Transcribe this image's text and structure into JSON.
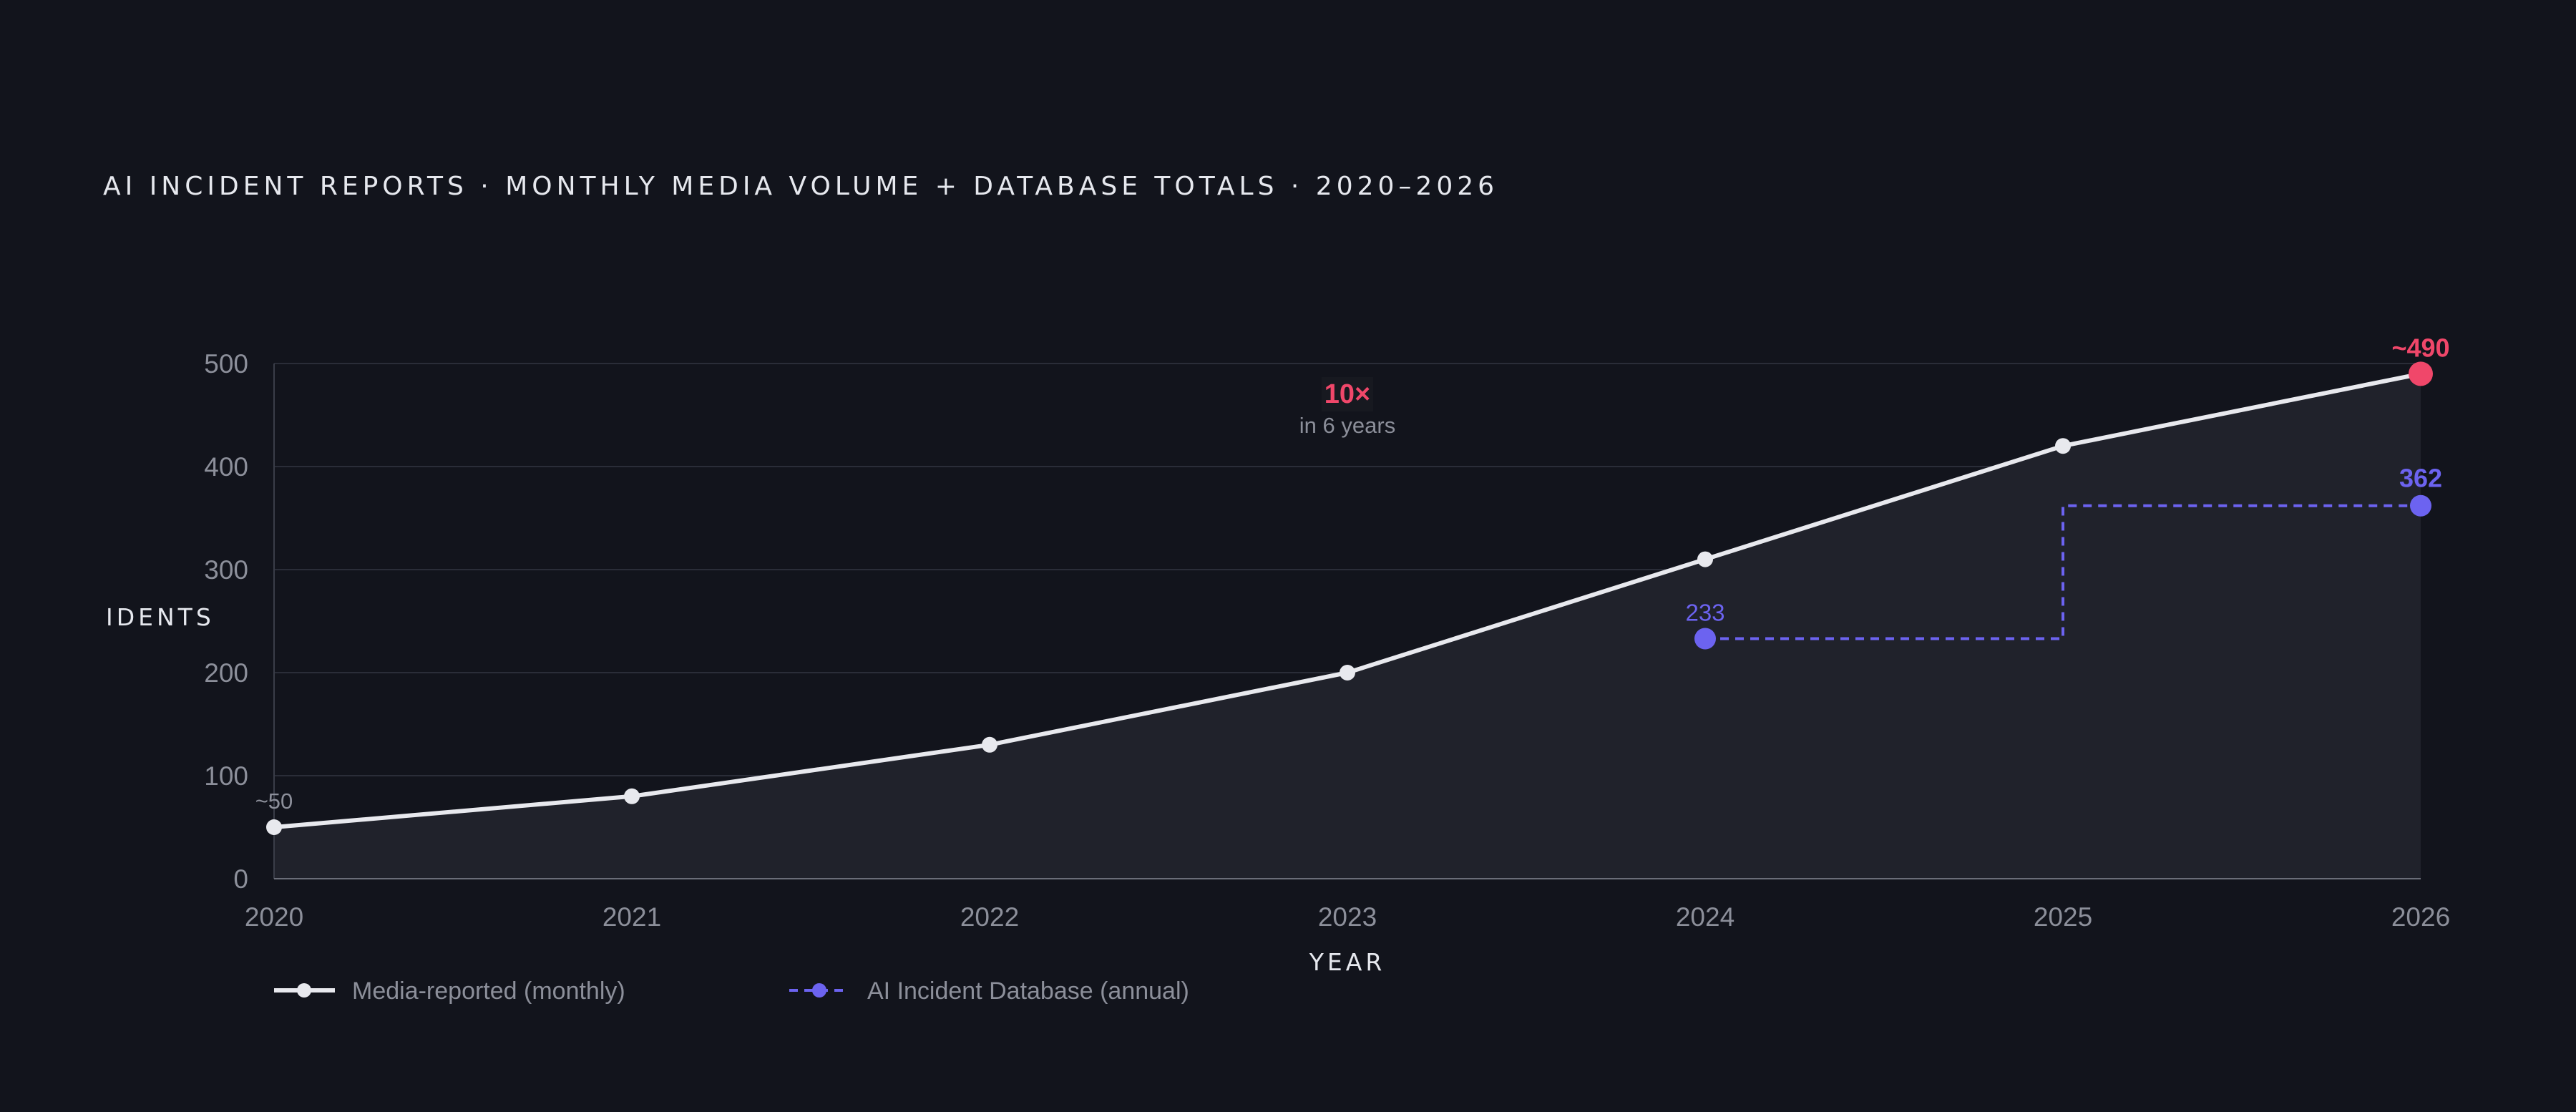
{
  "title": "AI INCIDENT REPORTS · MONTHLY MEDIA VOLUME + DATABASE TOTALS · 2020–2026",
  "colors": {
    "background": "#12141c",
    "media_line": "#e8e9ee",
    "database_line": "#6c63f0",
    "highlight": "#f0476a",
    "grid": "#2a2d38",
    "area_fill": "#20222b"
  },
  "chart_data": {
    "type": "line",
    "xlabel": "YEAR",
    "ylabel": "IDENTS",
    "xlim": [
      2020,
      2026
    ],
    "ylim": [
      0,
      500
    ],
    "x_ticks": [
      "2020",
      "2021",
      "2022",
      "2023",
      "2024",
      "2025",
      "2026"
    ],
    "y_ticks": [
      "0",
      "100",
      "200",
      "300",
      "400",
      "500"
    ],
    "grid": true,
    "legend_position": "bottom-left",
    "series": [
      {
        "name": "Media-reported (monthly)",
        "style": "solid-area",
        "x": [
          2020,
          2021,
          2022,
          2023,
          2024,
          2025,
          2026
        ],
        "y": [
          50,
          80,
          130,
          200,
          310,
          420,
          490
        ]
      },
      {
        "name": "AI Incident Database (annual)",
        "style": "dashed-step",
        "x": [
          2024,
          2025,
          2026
        ],
        "y": [
          233,
          362,
          362
        ]
      }
    ],
    "annotations": {
      "callout_main": "10×",
      "callout_sub": "in 6 years",
      "start_label": "~50",
      "end_label": "~490",
      "db_start_label": "233",
      "db_end_label": "362"
    }
  }
}
